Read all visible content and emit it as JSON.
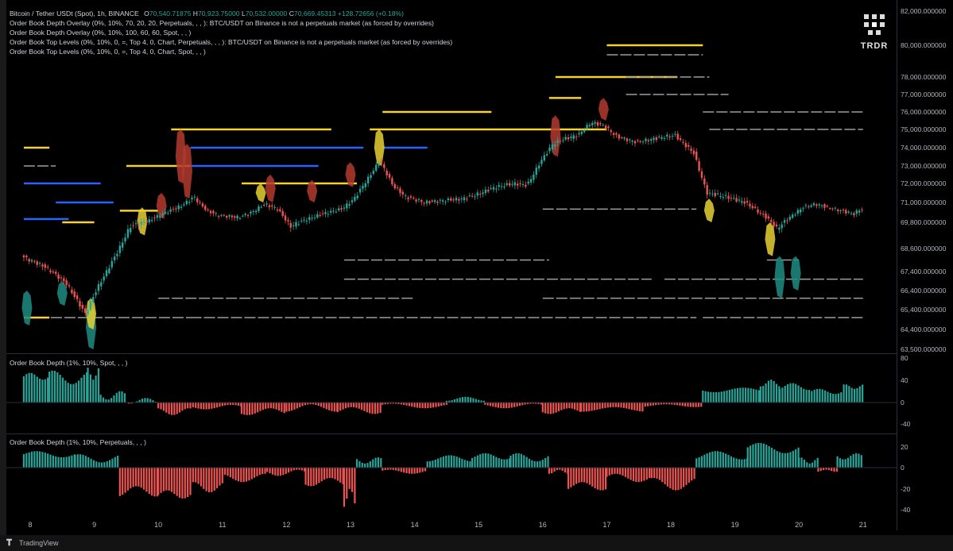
{
  "header": {
    "symbol": "Bitcoin / Tether USDt (Spot), 1h, BINANCE",
    "o_label": "O",
    "o_value": "70,540.71875",
    "h_label": "H",
    "h_value": "70,923.75000",
    "l_label": "L",
    "l_value": "70,532.00000",
    "c_label": "C",
    "c_value": "70,669.45313",
    "change": "+128.72656 (+0.18%)"
  },
  "indicators": [
    "Order Book Depth Overlay (0%, 10%, 70, 20, 20, Perpetuals, , , ): BTC/USDT on Binance is not a perpetuals market (as forced by overrides)",
    "Order Book Depth Overlay (0%, 10%, 100, 60, 60, Spot, , , )",
    "Order Book Top Levels (0%, 10%, 0, =, Top 4, 0, Chart, Perpetuals, , , ): BTC/USDT on Binance is not a perpetuals market (as forced by overrides)",
    "Order Book Top Levels (0%, 10%, 0, =, Top 4, 0, Chart, Spot, , , )"
  ],
  "logo": {
    "text": "TRDR"
  },
  "pane2_label": "Order Book Depth (1%, 10%, Spot, , , )",
  "pane3_label": "Order Book Depth (1%, 10%, Perpetuals, , , )",
  "footer": {
    "brand": "TradingView",
    "icon": "tradingview-icon"
  },
  "colors": {
    "up": "#26a69a",
    "down": "#ef5350",
    "bid_level": "#2962ff",
    "ask_level": "#f5d131",
    "level_gray": "#9e9e9e",
    "depth_red": "#b33a2e",
    "depth_yellow": "#e8d134",
    "depth_teal": "#1e8c82"
  },
  "chart_data": [
    {
      "type": "candlestick",
      "title": "Bitcoin / Tether USDt (Spot), 1h, BINANCE",
      "y_ticks": [
        "82,000.000000",
        "80,000.000000",
        "78,000.000000",
        "77,000.000000",
        "76,000.000000",
        "75,000.000000",
        "74,000.000000",
        "73,000.000000",
        "72,000.000000",
        "71,000.000000",
        "69,800.000000",
        "68,600.000000",
        "67,400.000000",
        "66,400.000000",
        "65,400.000000",
        "64,400.000000",
        "63,500.000000"
      ],
      "x_ticks": [
        "8",
        "9",
        "10",
        "11",
        "12",
        "13",
        "14",
        "15",
        "16",
        "17",
        "18",
        "19",
        "20",
        "21"
      ],
      "price_path": [
        [
          7.9,
          68200
        ],
        [
          8.3,
          67600
        ],
        [
          8.6,
          66800
        ],
        [
          8.9,
          65200
        ],
        [
          9.1,
          66600
        ],
        [
          9.4,
          68400
        ],
        [
          9.6,
          69600
        ],
        [
          9.9,
          69900
        ],
        [
          10.1,
          70300
        ],
        [
          10.4,
          70800
        ],
        [
          10.6,
          71300
        ],
        [
          10.8,
          70500
        ],
        [
          11.0,
          70200
        ],
        [
          11.3,
          70100
        ],
        [
          11.5,
          70400
        ],
        [
          11.7,
          70900
        ],
        [
          11.9,
          70600
        ],
        [
          12.1,
          69600
        ],
        [
          12.3,
          69900
        ],
        [
          12.6,
          70300
        ],
        [
          12.9,
          70600
        ],
        [
          13.1,
          71200
        ],
        [
          13.3,
          72200
        ],
        [
          13.5,
          73300
        ],
        [
          13.7,
          71900
        ],
        [
          13.9,
          71300
        ],
        [
          14.2,
          71000
        ],
        [
          14.5,
          71100
        ],
        [
          14.8,
          71200
        ],
        [
          15.0,
          71400
        ],
        [
          15.3,
          71800
        ],
        [
          15.6,
          72000
        ],
        [
          15.8,
          71900
        ],
        [
          16.0,
          73200
        ],
        [
          16.2,
          74200
        ],
        [
          16.4,
          74500
        ],
        [
          16.6,
          74700
        ],
        [
          16.8,
          75400
        ],
        [
          17.0,
          75200
        ],
        [
          17.2,
          74600
        ],
        [
          17.5,
          74300
        ],
        [
          17.8,
          74500
        ],
        [
          18.1,
          74700
        ],
        [
          18.4,
          73700
        ],
        [
          18.6,
          71500
        ],
        [
          18.9,
          71300
        ],
        [
          19.2,
          71000
        ],
        [
          19.5,
          70200
        ],
        [
          19.7,
          69500
        ],
        [
          19.9,
          70100
        ],
        [
          20.1,
          70700
        ],
        [
          20.3,
          70900
        ],
        [
          20.6,
          70600
        ],
        [
          20.9,
          70300
        ],
        [
          21.0,
          70600
        ]
      ],
      "order_levels": [
        {
          "side": "ask",
          "price": 80000,
          "x0": 17.0,
          "x1": 18.5
        },
        {
          "side": "gray",
          "price": 79400,
          "x0": 17.0,
          "x1": 18.5
        },
        {
          "side": "ask",
          "price": 78000,
          "x0": 16.2,
          "x1": 18.1
        },
        {
          "side": "gray",
          "price": 78000,
          "x0": 17.3,
          "x1": 18.6
        },
        {
          "side": "ask",
          "price": 76800,
          "x0": 16.1,
          "x1": 16.6
        },
        {
          "side": "ask",
          "price": 76000,
          "x0": 13.5,
          "x1": 15.2
        },
        {
          "side": "gray",
          "price": 77000,
          "x0": 17.3,
          "x1": 18.9
        },
        {
          "side": "gray",
          "price": 76000,
          "x0": 18.5,
          "x1": 21.0
        },
        {
          "side": "ask",
          "price": 75000,
          "x0": 10.2,
          "x1": 12.7
        },
        {
          "side": "ask",
          "price": 75000,
          "x0": 13.3,
          "x1": 17.0
        },
        {
          "side": "gray",
          "price": 75000,
          "x0": 18.6,
          "x1": 21.0
        },
        {
          "side": "bid",
          "price": 74000,
          "x0": 10.5,
          "x1": 13.2
        },
        {
          "side": "bid",
          "price": 74000,
          "x0": 13.5,
          "x1": 14.2
        },
        {
          "side": "ask",
          "price": 74000,
          "x0": 7.9,
          "x1": 8.3
        },
        {
          "side": "bid",
          "price": 73000,
          "x0": 10.5,
          "x1": 12.5
        },
        {
          "side": "ask",
          "price": 73000,
          "x0": 9.5,
          "x1": 10.5
        },
        {
          "side": "gray",
          "price": 73000,
          "x0": 7.9,
          "x1": 8.4
        },
        {
          "side": "ask",
          "price": 72000,
          "x0": 11.3,
          "x1": 13.1
        },
        {
          "side": "bid",
          "price": 72000,
          "x0": 7.9,
          "x1": 9.1
        },
        {
          "side": "bid",
          "price": 71000,
          "x0": 8.4,
          "x1": 9.3
        },
        {
          "side": "ask",
          "price": 70500,
          "x0": 9.4,
          "x1": 10.0
        },
        {
          "side": "bid",
          "price": 70000,
          "x0": 7.9,
          "x1": 8.6
        },
        {
          "side": "ask",
          "price": 69800,
          "x0": 8.5,
          "x1": 9.0
        },
        {
          "side": "gray",
          "price": 70600,
          "x0": 16.0,
          "x1": 18.4
        },
        {
          "side": "gray",
          "price": 68000,
          "x0": 12.9,
          "x1": 16.1
        },
        {
          "side": "gray",
          "price": 68000,
          "x0": 19.5,
          "x1": 20.0
        },
        {
          "side": "gray",
          "price": 67000,
          "x0": 12.9,
          "x1": 17.7
        },
        {
          "side": "gray",
          "price": 67000,
          "x0": 17.9,
          "x1": 21.0
        },
        {
          "side": "gray",
          "price": 66000,
          "x0": 10.0,
          "x1": 14.0
        },
        {
          "side": "gray",
          "price": 66000,
          "x0": 16.0,
          "x1": 21.0
        },
        {
          "side": "gray",
          "price": 65000,
          "x0": 7.9,
          "x1": 10.5
        },
        {
          "side": "gray",
          "price": 65000,
          "x0": 10.5,
          "x1": 18.4
        },
        {
          "side": "gray",
          "price": 65000,
          "x0": 18.5,
          "x1": 21.0
        },
        {
          "side": "ask",
          "price": 65000,
          "x0": 7.9,
          "x1": 8.3
        }
      ],
      "depth_blobs": [
        {
          "color": "red",
          "x": 10.35,
          "price_top": 75000,
          "price_bot": 72000
        },
        {
          "color": "red",
          "x": 10.45,
          "price_top": 74200,
          "price_bot": 71200
        },
        {
          "color": "yellow",
          "x": 13.45,
          "price_top": 75000,
          "price_bot": 73000
        },
        {
          "color": "red",
          "x": 13.0,
          "price_top": 73200,
          "price_bot": 71800
        },
        {
          "color": "red",
          "x": 11.75,
          "price_top": 72500,
          "price_bot": 71000
        },
        {
          "color": "red",
          "x": 12.4,
          "price_top": 72200,
          "price_bot": 71000
        },
        {
          "color": "yellow",
          "x": 11.6,
          "price_top": 72000,
          "price_bot": 71000
        },
        {
          "color": "red",
          "x": 16.2,
          "price_top": 75800,
          "price_bot": 73500
        },
        {
          "color": "red",
          "x": 16.95,
          "price_top": 76800,
          "price_bot": 75500
        },
        {
          "color": "yellow",
          "x": 9.75,
          "price_top": 70700,
          "price_bot": 69200
        },
        {
          "color": "red",
          "x": 10.05,
          "price_top": 71500,
          "price_bot": 70000
        },
        {
          "color": "teal",
          "x": 19.7,
          "price_top": 68200,
          "price_bot": 66000
        },
        {
          "color": "teal",
          "x": 19.95,
          "price_top": 68200,
          "price_bot": 66400
        },
        {
          "color": "yellow",
          "x": 19.55,
          "price_top": 69800,
          "price_bot": 68200
        },
        {
          "color": "teal",
          "x": 7.95,
          "price_top": 66400,
          "price_bot": 64600
        },
        {
          "color": "teal",
          "x": 8.95,
          "price_top": 65600,
          "price_bot": 63500
        },
        {
          "color": "yellow",
          "x": 8.95,
          "price_top": 66000,
          "price_bot": 64400
        },
        {
          "color": "teal",
          "x": 8.5,
          "price_top": 66900,
          "price_bot": 65600
        },
        {
          "color": "yellow",
          "x": 18.6,
          "price_top": 71200,
          "price_bot": 69800
        }
      ]
    },
    {
      "type": "bar",
      "title": "Order Book Depth (1%, 10%, Spot, , , )",
      "y_ticks": [
        "80",
        "40",
        "0",
        "-40"
      ],
      "segments": [
        [
          7.9,
          8.3,
          40,
          52
        ],
        [
          8.3,
          8.9,
          32,
          56
        ],
        [
          8.9,
          9.1,
          40,
          62
        ],
        [
          9.1,
          9.5,
          5,
          20
        ],
        [
          9.5,
          10.0,
          -2,
          8
        ],
        [
          10.0,
          10.5,
          -10,
          -22
        ],
        [
          10.5,
          11.3,
          -4,
          -12
        ],
        [
          11.3,
          12.0,
          -10,
          -22
        ],
        [
          12.0,
          12.8,
          -3,
          -16
        ],
        [
          12.8,
          13.5,
          -8,
          -20
        ],
        [
          13.5,
          14.5,
          -2,
          -10
        ],
        [
          14.5,
          15.1,
          3,
          10
        ],
        [
          15.1,
          16.0,
          -2,
          -10
        ],
        [
          16.0,
          16.6,
          -10,
          -20
        ],
        [
          16.6,
          17.6,
          -8,
          -16
        ],
        [
          17.6,
          18.5,
          -3,
          -8
        ],
        [
          18.5,
          19.4,
          18,
          26
        ],
        [
          19.4,
          19.7,
          28,
          40
        ],
        [
          19.7,
          20.2,
          22,
          34
        ],
        [
          20.2,
          20.7,
          15,
          24
        ],
        [
          20.7,
          21.0,
          24,
          32
        ]
      ]
    },
    {
      "type": "bar",
      "title": "Order Book Depth (1%, 10%, Perpetuals, , , )",
      "y_ticks": [
        "20",
        "0",
        "-20",
        "-40"
      ],
      "segments": [
        [
          7.9,
          8.7,
          10,
          16
        ],
        [
          8.7,
          9.4,
          5,
          13
        ],
        [
          9.4,
          10.0,
          -18,
          -28
        ],
        [
          10.0,
          10.5,
          -22,
          -30
        ],
        [
          10.5,
          11.0,
          -14,
          -24
        ],
        [
          11.0,
          11.7,
          -6,
          -14
        ],
        [
          11.7,
          12.3,
          -2,
          -8
        ],
        [
          12.3,
          12.9,
          -10,
          -18
        ],
        [
          12.9,
          13.1,
          -20,
          -38
        ],
        [
          13.1,
          13.5,
          4,
          10
        ],
        [
          13.5,
          14.2,
          -2,
          -6
        ],
        [
          14.2,
          14.9,
          6,
          12
        ],
        [
          14.9,
          15.5,
          8,
          14
        ],
        [
          15.5,
          16.1,
          6,
          14
        ],
        [
          16.1,
          16.4,
          -2,
          -6
        ],
        [
          16.4,
          17.0,
          -14,
          -22
        ],
        [
          17.0,
          17.7,
          -6,
          -14
        ],
        [
          17.7,
          18.4,
          -10,
          -22
        ],
        [
          18.4,
          19.2,
          8,
          16
        ],
        [
          19.2,
          20.0,
          14,
          24
        ],
        [
          20.0,
          20.3,
          4,
          10
        ],
        [
          20.3,
          20.6,
          -2,
          -4
        ],
        [
          20.6,
          21.0,
          8,
          14
        ]
      ]
    }
  ]
}
